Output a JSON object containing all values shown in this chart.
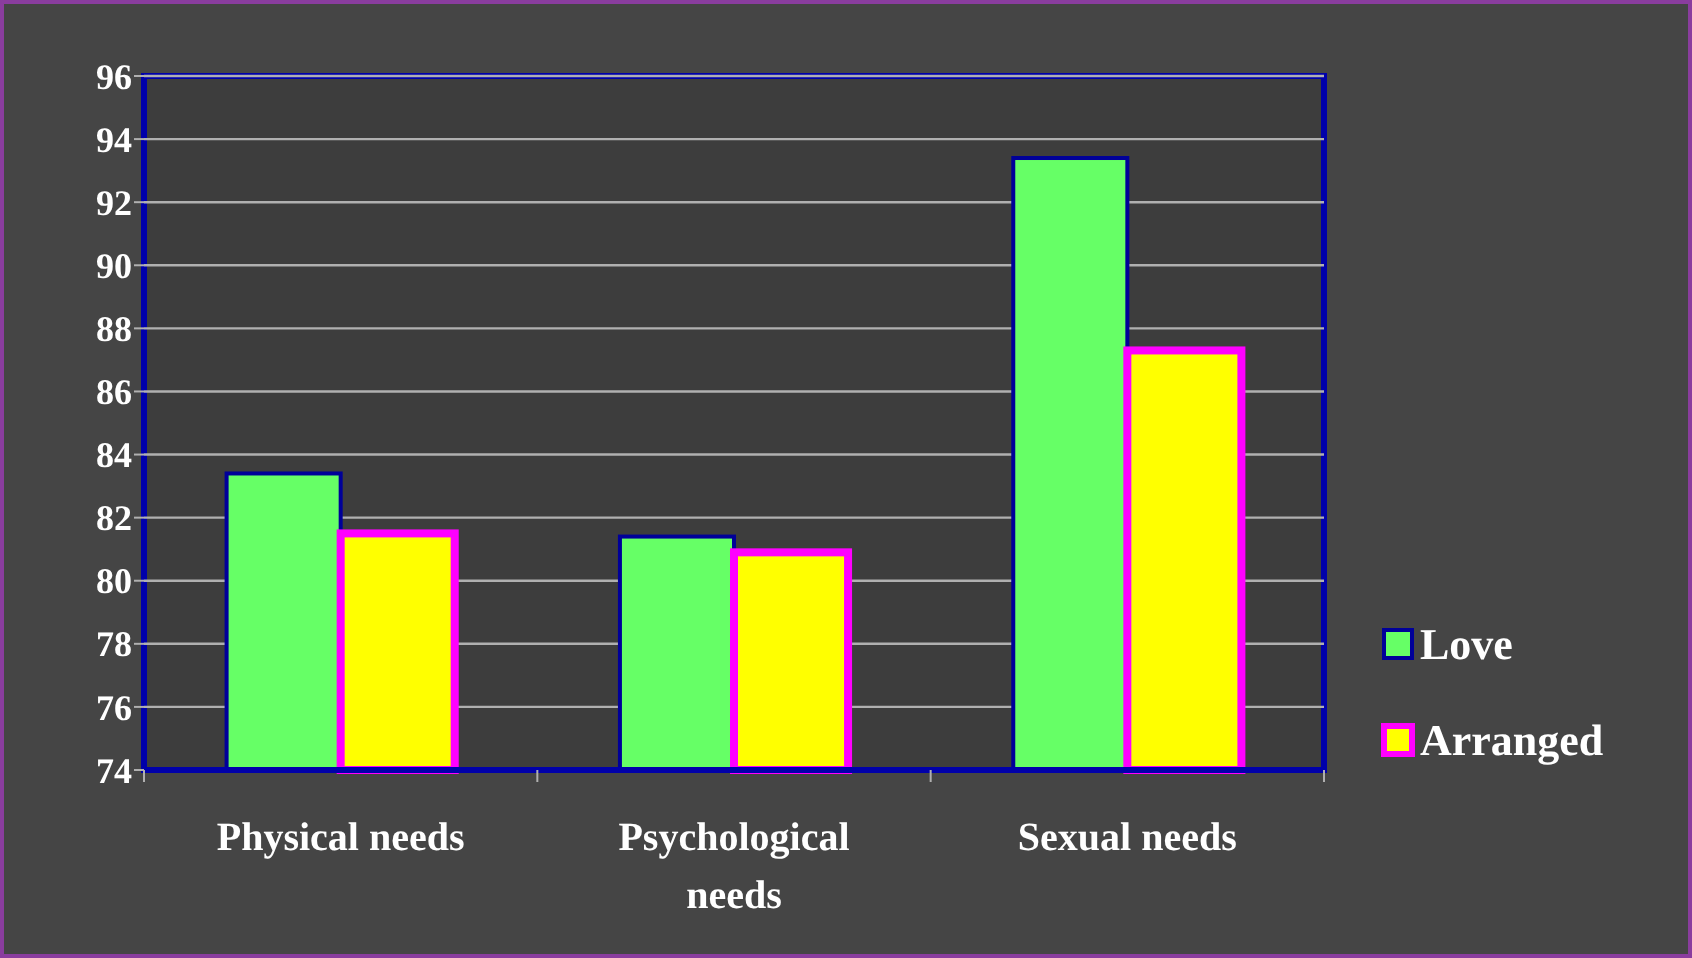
{
  "chart_data": {
    "type": "bar",
    "categories": [
      "Physical needs",
      "Psychological needs",
      "Sexual needs"
    ],
    "series": [
      {
        "name": "Love",
        "color": "#66ff66",
        "values": [
          83.4,
          81.4,
          93.4
        ]
      },
      {
        "name": "Arranged",
        "color": "#ffff00",
        "values": [
          81.5,
          80.9,
          87.3
        ]
      }
    ],
    "ylim": [
      74,
      96
    ],
    "yticks": [
      74,
      76,
      78,
      80,
      82,
      84,
      86,
      88,
      90,
      92,
      94,
      96
    ],
    "grid": "y",
    "legend": "right"
  }
}
